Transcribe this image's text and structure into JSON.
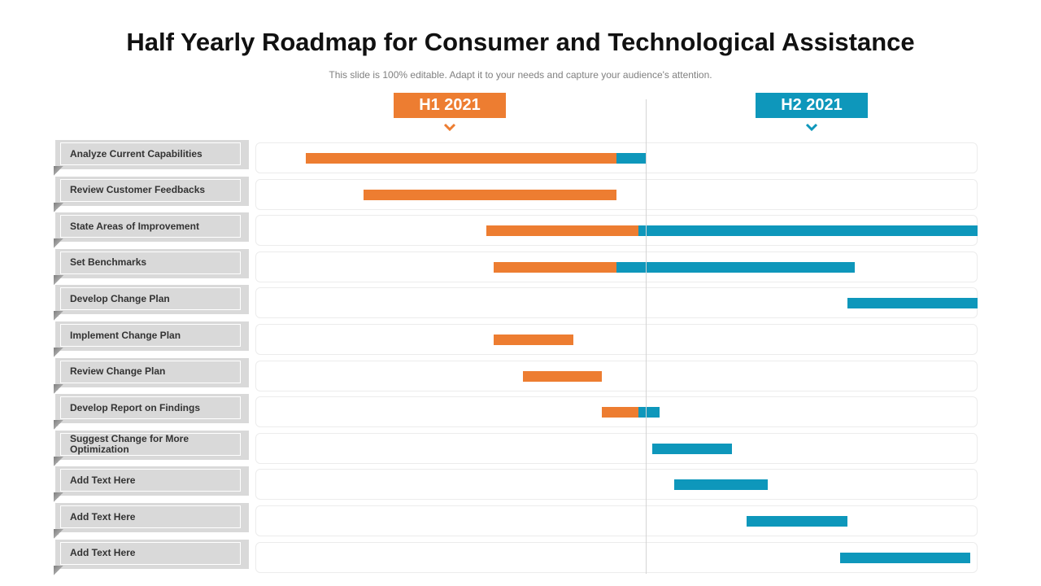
{
  "title": "Half Yearly Roadmap for Consumer and Technological Assistance",
  "subtitle": "This slide is 100% editable. Adapt it to your needs and capture your audience's attention.",
  "colors": {
    "h1": "#ED7D31",
    "h2": "#0E97BB",
    "label_bg": "#D9D9D9"
  },
  "periods": {
    "h1": "H1 2021",
    "h2": "H2 2021"
  },
  "icons": {
    "period_marker": "chevron-down-icon"
  },
  "timeline_scale": "fraction of the year: 0 = start of H1, 0.5 = H1/H2 boundary, 1 = end of H2",
  "tasks": [
    {
      "label": "Analyze Current Capabilities",
      "h1": [
        0.07,
        0.5
      ],
      "h2": [
        0.5,
        0.54
      ]
    },
    {
      "label": "Review Customer Feedbacks",
      "h1": [
        0.15,
        0.5
      ]
    },
    {
      "label": "State Areas of Improvement",
      "h1": [
        0.32,
        0.53
      ],
      "h2": [
        0.53,
        1.0
      ]
    },
    {
      "label": "Set Benchmarks",
      "h1": [
        0.33,
        0.5
      ],
      "h2": [
        0.5,
        0.83
      ]
    },
    {
      "label": "Develop Change Plan",
      "h2": [
        0.82,
        1.0
      ]
    },
    {
      "label": "Implement Change Plan",
      "h1": [
        0.33,
        0.44
      ]
    },
    {
      "label": "Review Change Plan",
      "h1": [
        0.37,
        0.48
      ]
    },
    {
      "label": "Develop Report on Findings",
      "h1": [
        0.48,
        0.53
      ],
      "h2": [
        0.53,
        0.56
      ]
    },
    {
      "label": "Suggest Change for More Optimization",
      "h2": [
        0.55,
        0.66
      ]
    },
    {
      "label": "Add Text Here",
      "h2": [
        0.58,
        0.71
      ]
    },
    {
      "label": "Add Text Here",
      "h2": [
        0.68,
        0.82
      ]
    },
    {
      "label": "Add Text Here",
      "h2": [
        0.81,
        0.99
      ]
    }
  ]
}
